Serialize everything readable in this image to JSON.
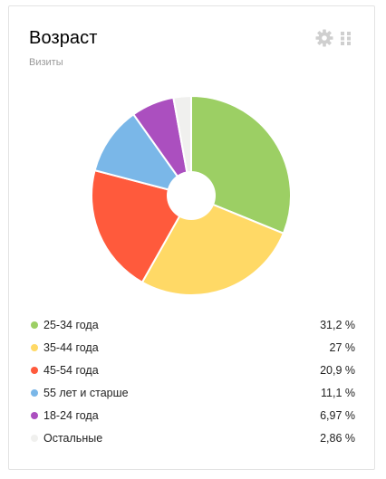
{
  "widget": {
    "title": "Возраст",
    "subtitle": "Визиты",
    "icons": {
      "settings": "gear-icon",
      "drag": "drag-handle-icon"
    },
    "icon_color": "#cfcfcf"
  },
  "chart_data": {
    "type": "pie",
    "donut": true,
    "legend_position": "bottom",
    "slices": [
      {
        "label": "25-34 года",
        "value": 31.2,
        "display": "31,2 %",
        "color": "#9ccf64"
      },
      {
        "label": "35-44 года",
        "value": 27,
        "display": "27 %",
        "color": "#ffd966"
      },
      {
        "label": "45-54 года",
        "value": 20.9,
        "display": "20,9 %",
        "color": "#ff5a3c"
      },
      {
        "label": "55 лет и старше",
        "value": 11.1,
        "display": "11,1 %",
        "color": "#7ab7e8"
      },
      {
        "label": "18-24 года",
        "value": 6.97,
        "display": "6,97 %",
        "color": "#ab4fbf"
      },
      {
        "label": "Остальные",
        "value": 2.86,
        "display": "2,86 %",
        "color": "#f0f0ee"
      }
    ]
  }
}
